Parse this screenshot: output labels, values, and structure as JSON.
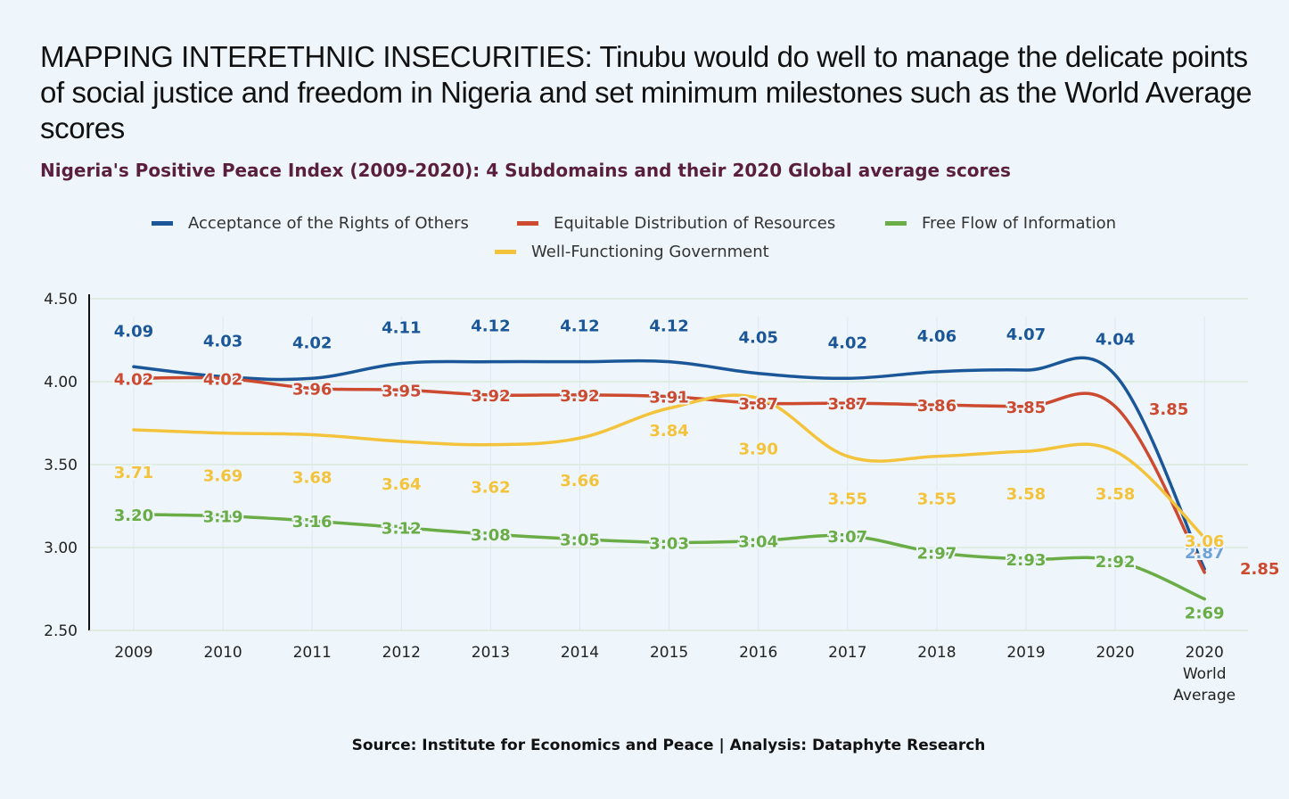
{
  "title": "MAPPING INTERETHNIC INSECURITIES: Tinubu would do well to manage the delicate points of social justice and freedom in Nigeria and set minimum milestones such as the World Average scores",
  "subtitle": "Nigeria's Positive Peace Index (2009-2020): 4 Subdomains and their 2020 Global average scores",
  "source": "Source: Institute for Economics and Peace | Analysis: Dataphyte Research",
  "chart_data": {
    "type": "line",
    "categories": [
      "2009",
      "2010",
      "2011",
      "2012",
      "2013",
      "2014",
      "2015",
      "2016",
      "2017",
      "2018",
      "2019",
      "2020",
      "2020 World Average"
    ],
    "category_lines": [
      [
        "2009"
      ],
      [
        "2010"
      ],
      [
        "2011"
      ],
      [
        "2012"
      ],
      [
        "2013"
      ],
      [
        "2014"
      ],
      [
        "2015"
      ],
      [
        "2016"
      ],
      [
        "2017"
      ],
      [
        "2018"
      ],
      [
        "2019"
      ],
      [
        "2020"
      ],
      [
        "2020",
        "World",
        "Average"
      ]
    ],
    "y_ticks": [
      "4.50",
      "4.00",
      "3.50",
      "3.00",
      "2.50"
    ],
    "ylim": [
      2.5,
      4.5
    ],
    "grid": true,
    "legend_position": "top",
    "series": [
      {
        "name": "Acceptance of the Rights of Others",
        "color": "#1b5798",
        "values": [
          4.09,
          4.03,
          4.02,
          4.11,
          4.12,
          4.12,
          4.12,
          4.05,
          4.02,
          4.06,
          4.07,
          4.04,
          2.87
        ],
        "labels": [
          "4.09",
          "4.03",
          "4.02",
          "4.11",
          "4.12",
          "4.12",
          "4.12",
          "4.05",
          "4.02",
          "4.06",
          "4.07",
          "4.04",
          "2.87"
        ]
      },
      {
        "name": "Equitable Distribution of Resources",
        "color": "#cc4a2f",
        "values": [
          4.02,
          4.02,
          3.96,
          3.95,
          3.92,
          3.92,
          3.91,
          3.87,
          3.87,
          3.86,
          3.85,
          3.85,
          2.85
        ],
        "labels": [
          "4.02",
          "4.02",
          "3.96",
          "3.95",
          "3.92",
          "3.92",
          "3.91",
          "3.87",
          "3.87",
          "3.86",
          "3.85",
          "3.85",
          "2.85"
        ]
      },
      {
        "name": "Free Flow of Information",
        "color": "#6aac45",
        "values": [
          3.2,
          3.19,
          3.16,
          3.12,
          3.08,
          3.05,
          3.03,
          3.04,
          3.07,
          2.97,
          2.93,
          2.92,
          2.69
        ],
        "labels": [
          "3.20",
          "3:19",
          "3:16",
          "3:12",
          "3:08",
          "3:05",
          "3:03",
          "3:04",
          "3:07",
          "2:97",
          "2:93",
          "2:92",
          "2:69"
        ]
      },
      {
        "name": "Well-Functioning Government",
        "color": "#f3c33c",
        "values": [
          3.71,
          3.69,
          3.68,
          3.64,
          3.62,
          3.66,
          3.84,
          3.9,
          3.55,
          3.55,
          3.58,
          3.58,
          3.06
        ],
        "labels": [
          "3.71",
          "3.69",
          "3.68",
          "3.64",
          "3.62",
          "3.66",
          "3.84",
          "3.90",
          "3.55",
          "3.55",
          "3.58",
          "3.58",
          "3.06"
        ]
      }
    ]
  }
}
